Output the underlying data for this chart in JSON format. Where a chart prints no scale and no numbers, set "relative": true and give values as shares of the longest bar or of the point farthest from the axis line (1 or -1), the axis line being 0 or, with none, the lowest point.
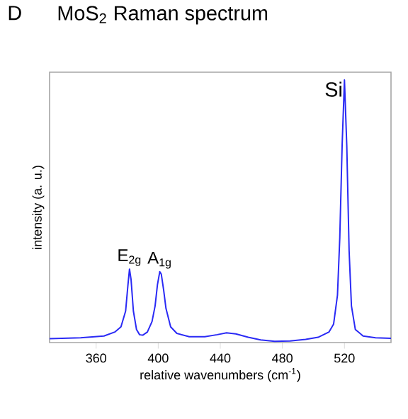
{
  "chart_data": {
    "type": "line",
    "title": "MoS$_{2}$ Raman spectrum",
    "xlabel": "relative wavenumbers (cm$^{-1}$)",
    "ylabel": "intensity (a. u.)",
    "relative": true,
    "xlim": [
      330,
      550
    ],
    "xticks": [
      360,
      400,
      440,
      480,
      520
    ],
    "tick_labels": "x",
    "marker": "none",
    "line_style": "solid",
    "x": [
      330,
      350,
      365,
      372,
      376,
      379,
      380.5,
      381.5,
      382.5,
      384,
      386,
      388,
      390,
      393,
      396,
      398,
      399.5,
      401,
      402,
      403.5,
      405,
      408,
      412,
      420,
      430,
      438,
      444,
      450,
      458,
      466,
      475,
      485,
      495,
      503,
      510,
      513,
      515.5,
      517,
      518.5,
      520,
      521.5,
      523,
      524.5,
      527,
      532,
      540,
      550
    ],
    "series": [
      {
        "color": "#2a2af5",
        "values": [
          0.015,
          0.018,
          0.025,
          0.04,
          0.06,
          0.12,
          0.22,
          0.28,
          0.24,
          0.12,
          0.05,
          0.03,
          0.028,
          0.04,
          0.08,
          0.14,
          0.22,
          0.27,
          0.26,
          0.2,
          0.13,
          0.06,
          0.035,
          0.022,
          0.022,
          0.03,
          0.037,
          0.033,
          0.02,
          0.01,
          0.005,
          0.006,
          0.012,
          0.02,
          0.04,
          0.07,
          0.18,
          0.4,
          0.75,
          1.0,
          0.75,
          0.35,
          0.14,
          0.05,
          0.025,
          0.018,
          0.016
        ]
      }
    ],
    "annotations": [
      "D",
      {
        "text": "E$_{2g}$",
        "x": 381.5,
        "y": 0.28
      },
      {
        "text": "A$_{1g}$",
        "x": 401,
        "y": 0.27
      },
      {
        "text": "Si",
        "x": 520,
        "y": 1.0
      }
    ]
  }
}
